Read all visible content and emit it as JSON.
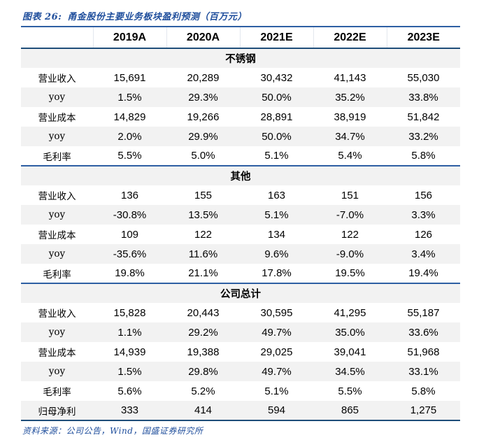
{
  "figure": {
    "label": "图表 26:",
    "title": "甬金股份主要业务板块盈利预测（百万元）",
    "source": "资料来源：公司公告，Wind，国盛证券研究所"
  },
  "colors": {
    "accent_blue": "#1F4E9C",
    "separator_line_blue": "#2E5FA3",
    "header_line_navy": "#1F4E79",
    "stripe_gray": "#F2F2F2"
  },
  "chart_data": {
    "type": "table",
    "title": "甬金股份主要业务板块盈利预测（百万元）",
    "columns": [
      "",
      "2019A",
      "2020A",
      "2021E",
      "2022E",
      "2023E"
    ],
    "sections": [
      {
        "header": "不锈钢",
        "rows": [
          {
            "label": "营业收入",
            "values": [
              "15,691",
              "20,289",
              "30,432",
              "41,143",
              "55,030"
            ]
          },
          {
            "label": "yoy",
            "values": [
              "1.5%",
              "29.3%",
              "50.0%",
              "35.2%",
              "33.8%"
            ]
          },
          {
            "label": "营业成本",
            "values": [
              "14,829",
              "19,266",
              "28,891",
              "38,919",
              "51,842"
            ]
          },
          {
            "label": "yoy",
            "values": [
              "2.0%",
              "29.9%",
              "50.0%",
              "34.7%",
              "33.2%"
            ]
          },
          {
            "label": "毛利率",
            "values": [
              "5.5%",
              "5.0%",
              "5.1%",
              "5.4%",
              "5.8%"
            ]
          }
        ]
      },
      {
        "header": "其他",
        "rows": [
          {
            "label": "营业收入",
            "values": [
              "136",
              "155",
              "163",
              "151",
              "156"
            ]
          },
          {
            "label": "yoy",
            "values": [
              "-30.8%",
              "13.5%",
              "5.1%",
              "-7.0%",
              "3.3%"
            ]
          },
          {
            "label": "营业成本",
            "values": [
              "109",
              "122",
              "134",
              "122",
              "126"
            ]
          },
          {
            "label": "yoy",
            "values": [
              "-35.6%",
              "11.6%",
              "9.6%",
              "-9.0%",
              "3.4%"
            ]
          },
          {
            "label": "毛利率",
            "values": [
              "19.8%",
              "21.1%",
              "17.8%",
              "19.5%",
              "19.4%"
            ]
          }
        ]
      },
      {
        "header": "公司总计",
        "rows": [
          {
            "label": "营业收入",
            "values": [
              "15,828",
              "20,443",
              "30,595",
              "41,295",
              "55,187"
            ]
          },
          {
            "label": "yoy",
            "values": [
              "1.1%",
              "29.2%",
              "49.7%",
              "35.0%",
              "33.6%"
            ]
          },
          {
            "label": "营业成本",
            "values": [
              "14,939",
              "19,388",
              "29,025",
              "39,041",
              "51,968"
            ]
          },
          {
            "label": "yoy",
            "values": [
              "1.5%",
              "29.8%",
              "49.7%",
              "34.5%",
              "33.1%"
            ]
          },
          {
            "label": "毛利率",
            "values": [
              "5.6%",
              "5.2%",
              "5.1%",
              "5.5%",
              "5.8%"
            ]
          },
          {
            "label": "归母净利",
            "values": [
              "333",
              "414",
              "594",
              "865",
              "1,275"
            ]
          }
        ]
      }
    ]
  }
}
